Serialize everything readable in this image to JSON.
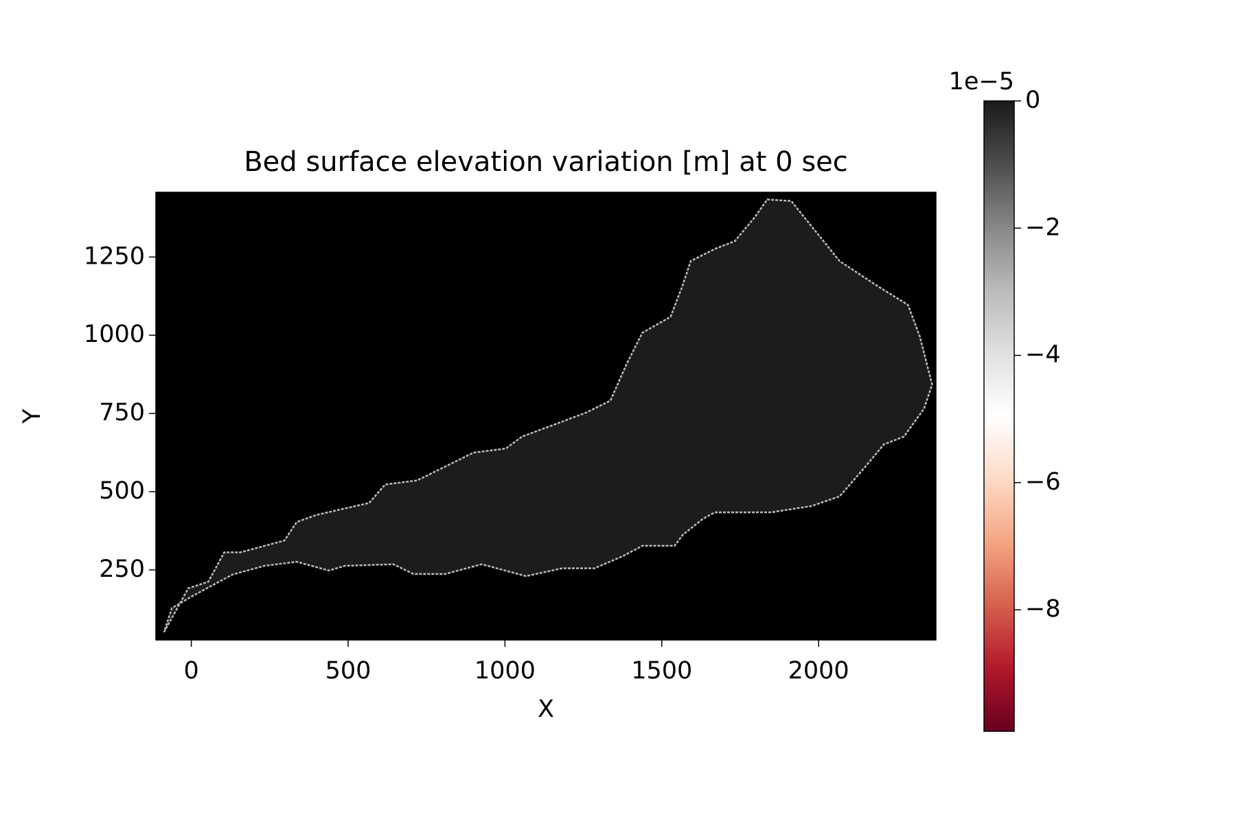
{
  "chart_data": {
    "type": "heatmap",
    "title": "Bed surface elevation variation [m] at 0 sec",
    "x_label": "X",
    "y_label": "Y",
    "xlim": [
      -113,
      2374
    ],
    "ylim": [
      26,
      1457
    ],
    "xticks": [
      0,
      500,
      1000,
      1500,
      2000
    ],
    "yticks": [
      250,
      500,
      750,
      1000,
      1250
    ],
    "background_color": "#000000",
    "domain_color": "#1c1c1c",
    "edge_color": "#bdbdbd",
    "domain": {
      "x": [
        -87,
        -10,
        54,
        105,
        156,
        297,
        336,
        400,
        567,
        618,
        720,
        823,
        900,
        1003,
        1054,
        1156,
        1259,
        1336,
        1387,
        1438,
        1528,
        1567,
        1592,
        1669,
        1733,
        1797,
        1836,
        1913,
        1964,
        2067,
        2182,
        2285,
        2323,
        2362,
        2336,
        2272,
        2208,
        2144,
        2067,
        1977,
        1849,
        1669,
        1631,
        1567,
        1541,
        1438,
        1374,
        1285,
        1182,
        1067,
        926,
        810,
        708,
        644,
        490,
        438,
        336,
        233,
        131,
        3,
        -62
      ],
      "y": [
        51,
        191,
        212,
        306,
        306,
        344,
        403,
        426,
        464,
        523,
        536,
        587,
        625,
        638,
        676,
        714,
        753,
        791,
        906,
        1008,
        1059,
        1161,
        1237,
        1276,
        1301,
        1378,
        1434,
        1429,
        1365,
        1237,
        1161,
        1097,
        995,
        842,
        765,
        676,
        651,
        574,
        485,
        454,
        434,
        434,
        413,
        362,
        327,
        327,
        293,
        255,
        255,
        230,
        268,
        237,
        237,
        268,
        263,
        248,
        276,
        263,
        235,
        166,
        128
      ]
    },
    "colorbar": {
      "offset_label": "1e−5",
      "clim": [
        -9.91,
        0
      ],
      "ticks": [
        {
          "value": 0,
          "label": "0"
        },
        {
          "value": -2,
          "label": "−2"
        },
        {
          "value": -4,
          "label": "−4"
        },
        {
          "value": -6,
          "label": "−6"
        },
        {
          "value": -8,
          "label": "−8"
        }
      ],
      "colormap": [
        "#67001f",
        "#b2182b",
        "#d6604d",
        "#f4a582",
        "#fddbc7",
        "#ffffff",
        "#e0e0e0",
        "#bababa",
        "#878787",
        "#4d4d4d",
        "#1a1a1a"
      ]
    }
  }
}
